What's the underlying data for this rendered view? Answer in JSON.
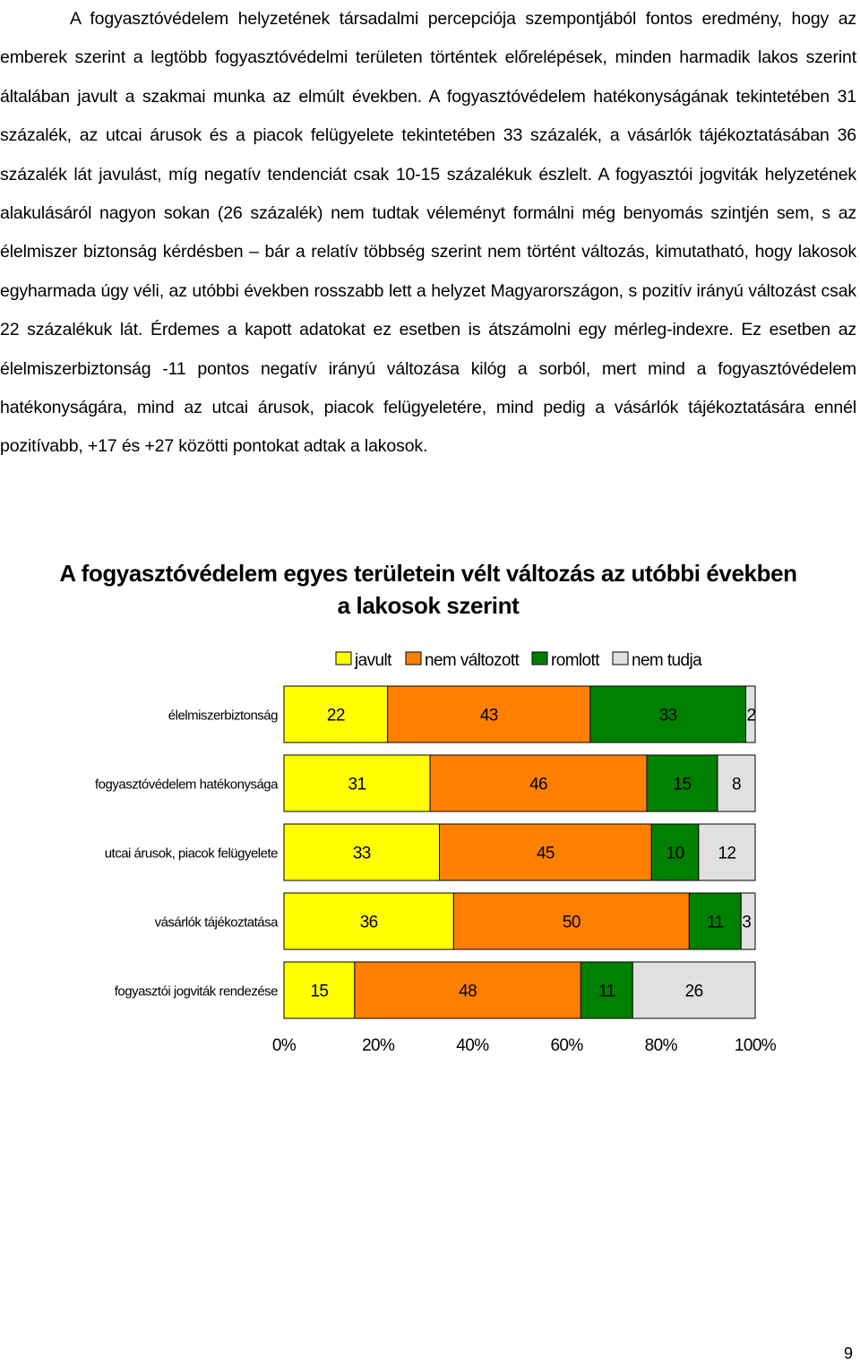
{
  "paragraph": "A fogyasztóvédelem helyzetének társadalmi percepciója szempontjából fontos eredmény, hogy az emberek szerint a legtöbb fogyasztóvédelmi területen történtek előrelépések, minden harmadik lakos szerint általában javult a szakmai munka az elmúlt években. A fogyasztóvédelem hatékonyságának tekintetében 31 százalék, az utcai árusok és a piacok felügyelete tekintetében 33 százalék, a vásárlók tájékoztatásában 36 százalék lát javulást, míg negatív tendenciát csak 10-15 százalékuk észlelt. A fogyasztói jogviták helyzetének alakulásáról nagyon sokan (26 százalék) nem tudtak véleményt formálni még benyomás szintjén sem, s az élelmiszer biztonság kérdésben – bár a relatív többség szerint nem történt változás, kimutatható, hogy lakosok egyharmada úgy véli, az utóbbi években rosszabb lett a helyzet Magyarországon, s pozitív irányú változást csak 22 százalékuk lát. Érdemes a kapott adatokat ez esetben is átszámolni egy mérleg-indexre. Ez esetben az élelmiszerbiztonság -11 pontos negatív irányú változása kilóg a sorból, mert mind a fogyasztóvédelem hatékonyságára, mind az utcai árusok, piacok felügyeletére, mind pedig a vásárlók tájékoztatására ennél pozitívabb, +17 és +27 közötti pontokat adtak a lakosok.",
  "chart_title_line1": "A fogyasztóvédelem egyes területein vélt változás az utóbbi években",
  "chart_title_line2": "a lakosok szerint",
  "chart_data": {
    "type": "bar",
    "orientation": "horizontal",
    "stacked": "percent",
    "categories": [
      "élelmiszerbiztonság",
      "fogyasztóvédelem hatékonysága",
      "utcai árusok, piacok felügyelete",
      "vásárlók tájékoztatása",
      "fogyasztói jogviták rendezése"
    ],
    "series": [
      {
        "name": "javult",
        "color": "#ffff00",
        "values": [
          22,
          31,
          33,
          36,
          15
        ]
      },
      {
        "name": "nem változott",
        "color": "#ff8000",
        "values": [
          43,
          46,
          45,
          50,
          48
        ]
      },
      {
        "name": "romlott",
        "color": "#008000",
        "values": [
          33,
          15,
          10,
          11,
          11
        ]
      },
      {
        "name": "nem tudja",
        "color": "#e0e0e0",
        "values": [
          2,
          8,
          12,
          3,
          26
        ]
      }
    ],
    "xticks": [
      "0%",
      "20%",
      "40%",
      "60%",
      "80%",
      "100%"
    ],
    "xlim": [
      0,
      100
    ],
    "legend": "top",
    "grid": false
  },
  "page_number": "9"
}
